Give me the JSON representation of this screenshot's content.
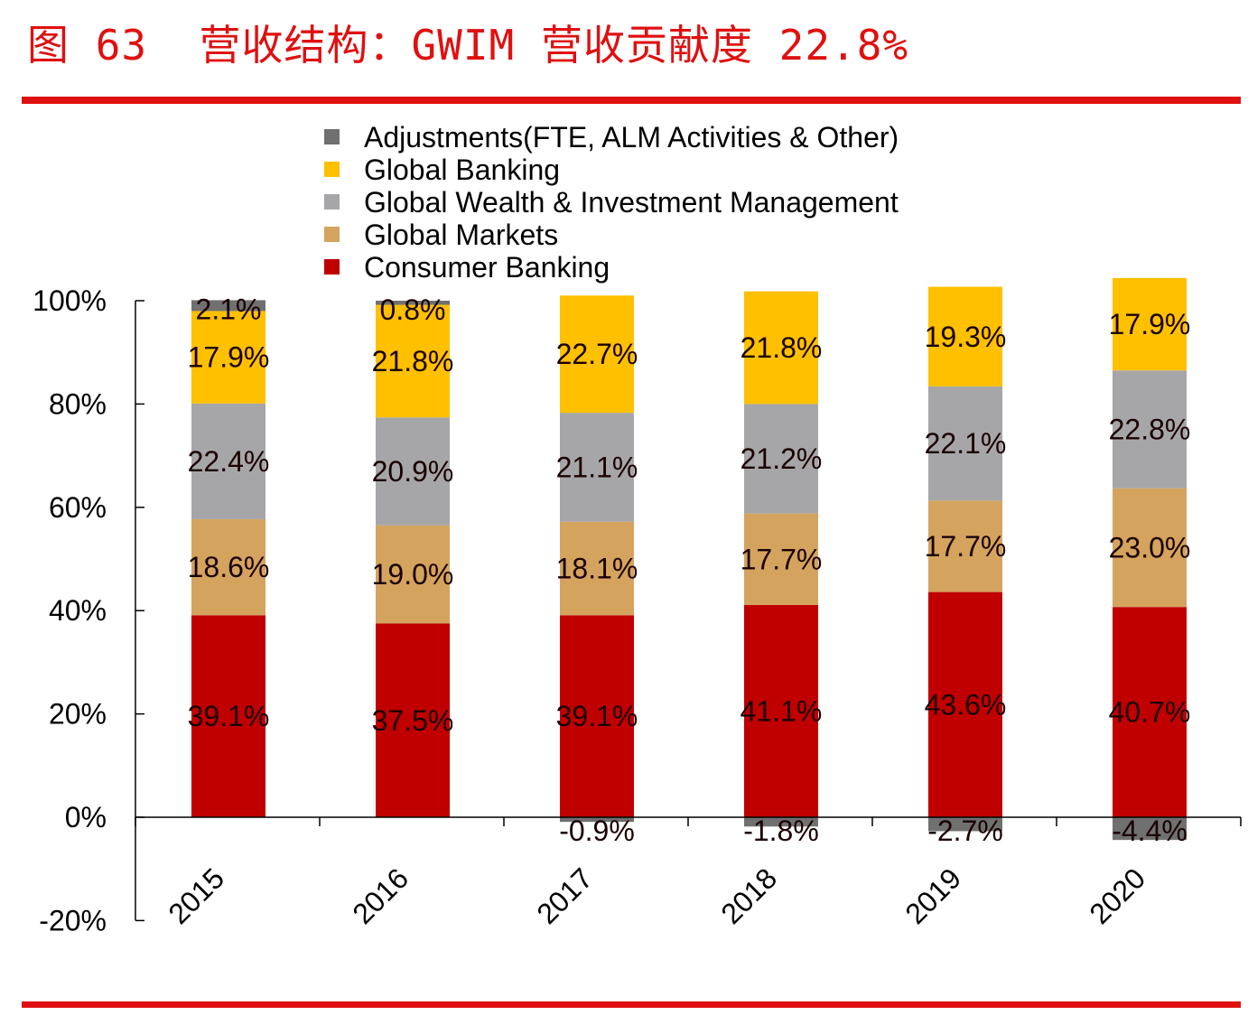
{
  "title": "图 63  营收结构：GWIM 营收贡献度 22.8%",
  "chart_data": {
    "type": "bar",
    "stacked": true,
    "categories": [
      "2015",
      "2016",
      "2017",
      "2018",
      "2019",
      "2020"
    ],
    "series": [
      {
        "name": "Consumer Banking",
        "color": "#C00000",
        "values": [
          39.1,
          37.5,
          39.1,
          41.1,
          43.6,
          40.7
        ]
      },
      {
        "name": "Global Markets",
        "color": "#D4A35E",
        "values": [
          18.6,
          19.0,
          18.1,
          17.7,
          17.7,
          23.0
        ]
      },
      {
        "name": "Global Wealth & Investment Management",
        "color": "#A6A6A8",
        "values": [
          22.4,
          20.9,
          21.1,
          21.2,
          22.1,
          22.8
        ]
      },
      {
        "name": "Global Banking",
        "color": "#FFC000",
        "values": [
          17.9,
          21.8,
          22.7,
          21.8,
          19.3,
          17.9
        ]
      },
      {
        "name": "Adjustments(FTE, ALM Activities & Other)",
        "color": "#707070",
        "values": [
          2.1,
          0.8,
          -0.9,
          -1.8,
          -2.7,
          -4.4
        ]
      }
    ],
    "legend_order": [
      "Adjustments(FTE, ALM Activities & Other)",
      "Global Banking",
      "Global Wealth & Investment Management",
      "Global Markets",
      "Consumer Banking"
    ],
    "ylim": [
      -20,
      100
    ],
    "yticks": [
      "100%",
      "80%",
      "60%",
      "40%",
      "20%",
      "0%",
      "-20%"
    ],
    "ytick_values": [
      100,
      80,
      60,
      40,
      20,
      0,
      -20
    ],
    "legend": "top",
    "grid": false,
    "accent_color": "#E01010"
  }
}
